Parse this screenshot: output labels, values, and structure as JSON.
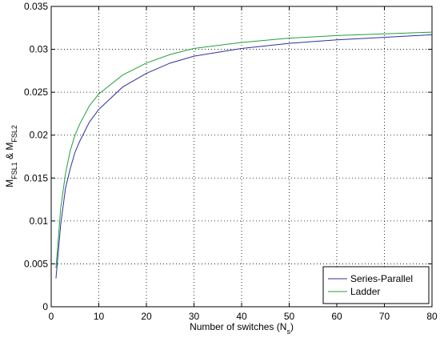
{
  "chart_data": {
    "type": "line",
    "x_label": [
      "Number of switches (N",
      "s",
      ")"
    ],
    "y_label": [
      "M",
      "FSL1",
      " & M",
      "FSL2"
    ],
    "x": [
      1,
      2,
      3,
      4,
      5,
      6,
      8,
      10,
      15,
      20,
      25,
      30,
      40,
      50,
      60,
      70,
      80
    ],
    "series": [
      {
        "name": "Series-Parallel",
        "color": "#2f2fa0",
        "values": [
          0.0033,
          0.0096,
          0.0138,
          0.0161,
          0.018,
          0.0193,
          0.0215,
          0.023,
          0.0256,
          0.0272,
          0.0284,
          0.0292,
          0.0301,
          0.0307,
          0.0311,
          0.0314,
          0.0317
        ]
      },
      {
        "name": "Ladder",
        "color": "#22a03c",
        "values": [
          0.0045,
          0.0115,
          0.0155,
          0.0182,
          0.02,
          0.0213,
          0.0234,
          0.0248,
          0.027,
          0.0284,
          0.0294,
          0.0301,
          0.0308,
          0.0313,
          0.0316,
          0.0318,
          0.032
        ]
      }
    ],
    "xlim": [
      0,
      80
    ],
    "xticks": [
      0,
      10,
      20,
      30,
      40,
      50,
      60,
      70,
      80
    ],
    "ylim": [
      0,
      0.035
    ],
    "yticks": [
      0,
      0.005,
      0.01,
      0.015,
      0.02,
      0.025,
      0.03,
      0.035
    ],
    "grid": true,
    "legend_position": "lower-right"
  }
}
